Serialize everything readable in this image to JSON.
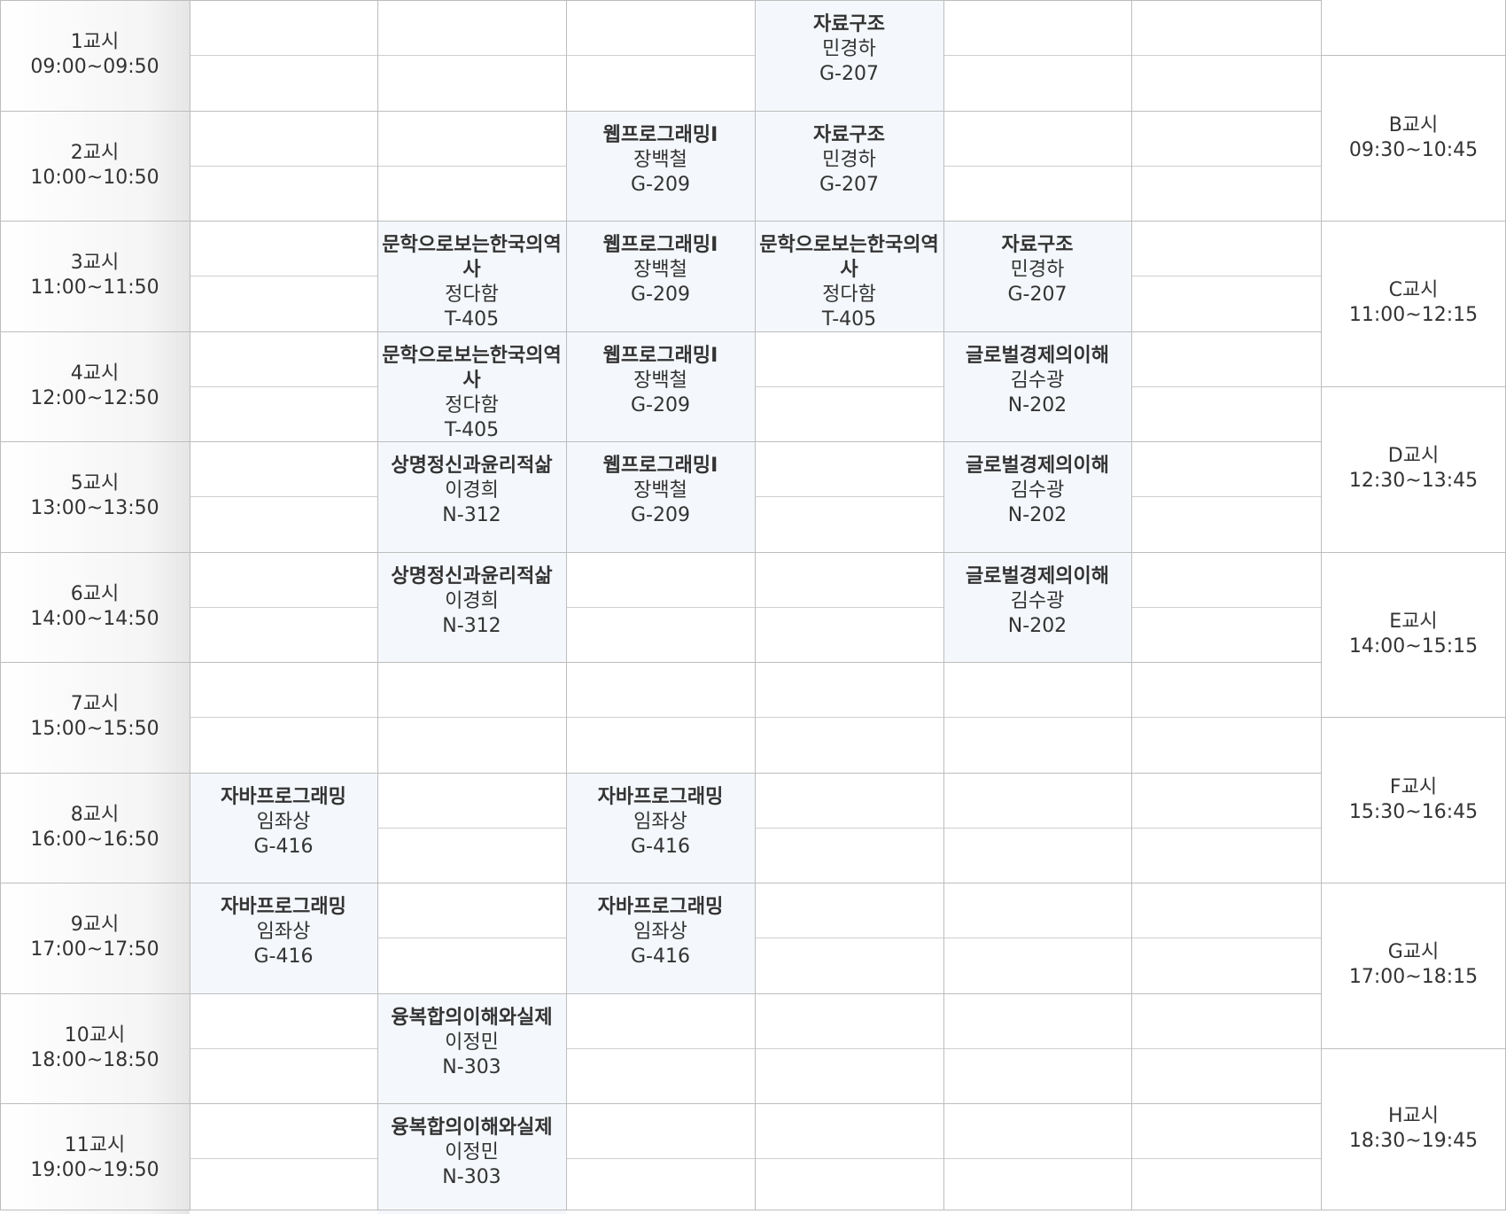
{
  "periods": [
    {
      "label": "1교시",
      "time": "09:00~09:50"
    },
    {
      "label": "2교시",
      "time": "10:00~10:50"
    },
    {
      "label": "3교시",
      "time": "11:00~11:50"
    },
    {
      "label": "4교시",
      "time": "12:00~12:50"
    },
    {
      "label": "5교시",
      "time": "13:00~13:50"
    },
    {
      "label": "6교시",
      "time": "14:00~14:50"
    },
    {
      "label": "7교시",
      "time": "15:00~15:50"
    },
    {
      "label": "8교시",
      "time": "16:00~16:50"
    },
    {
      "label": "9교시",
      "time": "17:00~17:50"
    },
    {
      "label": "10교시",
      "time": "18:00~18:50"
    },
    {
      "label": "11교시",
      "time": "19:00~19:50"
    }
  ],
  "blocks": [
    {
      "label": "B교시",
      "time": "09:30~10:45"
    },
    {
      "label": "C교시",
      "time": "11:00~12:15"
    },
    {
      "label": "D교시",
      "time": "12:30~13:45"
    },
    {
      "label": "E교시",
      "time": "14:00~15:15"
    },
    {
      "label": "F교시",
      "time": "15:30~16:45"
    },
    {
      "label": "G교시",
      "time": "17:00~18:15"
    },
    {
      "label": "H교시",
      "time": "18:30~19:45"
    }
  ],
  "courses": [
    {
      "col": 4,
      "period": 1,
      "name": "자료구조",
      "prof": "민경하",
      "room": "G-207"
    },
    {
      "col": 3,
      "period": 2,
      "name": "웹프로그래밍I",
      "prof": "장백철",
      "room": "G-209"
    },
    {
      "col": 4,
      "period": 2,
      "name": "자료구조",
      "prof": "민경하",
      "room": "G-207"
    },
    {
      "col": 2,
      "period": 3,
      "name": "문학으로보는한국의역사",
      "prof": "정다함",
      "room": "T-405"
    },
    {
      "col": 3,
      "period": 3,
      "name": "웹프로그래밍I",
      "prof": "장백철",
      "room": "G-209"
    },
    {
      "col": 4,
      "period": 3,
      "name": "문학으로보는한국의역사",
      "prof": "정다함",
      "room": "T-405"
    },
    {
      "col": 5,
      "period": 3,
      "name": "자료구조",
      "prof": "민경하",
      "room": "G-207"
    },
    {
      "col": 2,
      "period": 4,
      "name": "문학으로보는한국의역사",
      "prof": "정다함",
      "room": "T-405"
    },
    {
      "col": 3,
      "period": 4,
      "name": "웹프로그래밍I",
      "prof": "장백철",
      "room": "G-209"
    },
    {
      "col": 5,
      "period": 4,
      "name": "글로벌경제의이해",
      "prof": "김수광",
      "room": "N-202"
    },
    {
      "col": 2,
      "period": 5,
      "name": "상명정신과윤리적삶",
      "prof": "이경희",
      "room": "N-312"
    },
    {
      "col": 3,
      "period": 5,
      "name": "웹프로그래밍I",
      "prof": "장백철",
      "room": "G-209"
    },
    {
      "col": 5,
      "period": 5,
      "name": "글로벌경제의이해",
      "prof": "김수광",
      "room": "N-202"
    },
    {
      "col": 2,
      "period": 6,
      "name": "상명정신과윤리적삶",
      "prof": "이경희",
      "room": "N-312"
    },
    {
      "col": 5,
      "period": 6,
      "name": "글로벌경제의이해",
      "prof": "김수광",
      "room": "N-202"
    },
    {
      "col": 1,
      "period": 8,
      "name": "자바프로그래밍",
      "prof": "임좌상",
      "room": "G-416"
    },
    {
      "col": 3,
      "period": 8,
      "name": "자바프로그래밍",
      "prof": "임좌상",
      "room": "G-416"
    },
    {
      "col": 1,
      "period": 9,
      "name": "자바프로그래밍",
      "prof": "임좌상",
      "room": "G-416"
    },
    {
      "col": 3,
      "period": 9,
      "name": "자바프로그래밍",
      "prof": "임좌상",
      "room": "G-416"
    },
    {
      "col": 2,
      "period": 10,
      "name": "융복합의이해와실제",
      "prof": "이정민",
      "room": "N-303"
    },
    {
      "col": 2,
      "period": 11,
      "name": "융복합의이해와실제",
      "prof": "이정민",
      "room": "N-303"
    }
  ]
}
